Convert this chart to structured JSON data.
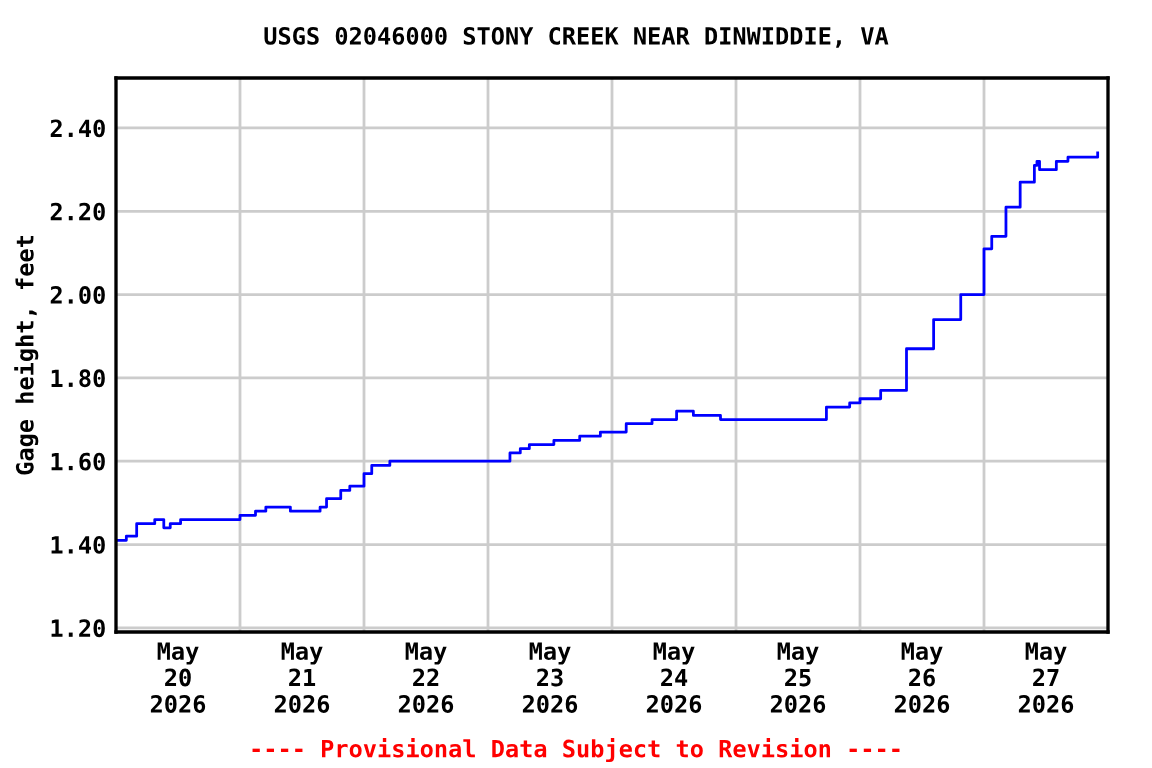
{
  "chart_data": {
    "type": "step",
    "title": "USGS 02046000 STONY CREEK NEAR DINWIDDIE, VA",
    "ylabel": "Gage height, feet",
    "annotations": [
      "---- Provisional Data Subject to Revision ----"
    ],
    "x": [
      "2026-05-20T00:00",
      "2026-05-20T02:00",
      "2026-05-20T04:00",
      "2026-05-20T07:30",
      "2026-05-20T09:15",
      "2026-05-20T10:30",
      "2026-05-20T12:30",
      "2026-05-20T23:15",
      "2026-05-21T00:00",
      "2026-05-21T03:00",
      "2026-05-21T05:00",
      "2026-05-21T09:00",
      "2026-05-21T09:45",
      "2026-05-21T14:45",
      "2026-05-21T15:30",
      "2026-05-21T16:45",
      "2026-05-21T19:30",
      "2026-05-21T21:15",
      "2026-05-22T00:00",
      "2026-05-22T01:30",
      "2026-05-22T05:00",
      "2026-05-23T03:30",
      "2026-05-23T04:15",
      "2026-05-23T06:15",
      "2026-05-23T08:00",
      "2026-05-23T12:45",
      "2026-05-23T17:45",
      "2026-05-23T21:45",
      "2026-05-24T02:45",
      "2026-05-24T07:45",
      "2026-05-24T12:30",
      "2026-05-24T15:30",
      "2026-05-24T15:45",
      "2026-05-24T20:00",
      "2026-05-24T21:00",
      "2026-05-25T17:00",
      "2026-05-25T17:30",
      "2026-05-25T20:00",
      "2026-05-25T22:00",
      "2026-05-26T00:00",
      "2026-05-26T04:00",
      "2026-05-26T09:00",
      "2026-05-26T14:15",
      "2026-05-26T19:30",
      "2026-05-26T22:00",
      "2026-05-27T00:00",
      "2026-05-27T01:30",
      "2026-05-27T04:15",
      "2026-05-27T07:00",
      "2026-05-27T09:45",
      "2026-05-27T10:15",
      "2026-05-27T10:45",
      "2026-05-27T12:45",
      "2026-05-27T14:00",
      "2026-05-27T16:15",
      "2026-05-27T21:45",
      "2026-05-27T22:00"
    ],
    "series": [
      {
        "color": "#0000ff",
        "values": [
          1.41,
          1.42,
          1.45,
          1.46,
          1.44,
          1.45,
          1.46,
          1.46,
          1.47,
          1.48,
          1.49,
          1.49,
          1.48,
          1.48,
          1.49,
          1.51,
          1.53,
          1.54,
          1.57,
          1.59,
          1.6,
          1.6,
          1.62,
          1.63,
          1.64,
          1.65,
          1.66,
          1.67,
          1.69,
          1.7,
          1.72,
          1.72,
          1.71,
          1.71,
          1.7,
          1.7,
          1.73,
          1.73,
          1.74,
          1.75,
          1.77,
          1.87,
          1.94,
          2.0,
          2.0,
          2.11,
          2.14,
          2.21,
          2.27,
          2.31,
          2.32,
          2.3,
          2.3,
          2.32,
          2.33,
          2.33,
          2.34
        ]
      }
    ],
    "xlim": [
      "2026-05-20T00:00",
      "2026-05-28T00:00"
    ],
    "xticks": [
      {
        "value": "2026-05-20T12:00",
        "label": "May\n20\n2026"
      },
      {
        "value": "2026-05-21T00:00",
        "label": null
      },
      {
        "value": "2026-05-21T12:00",
        "label": "May\n21\n2026"
      },
      {
        "value": "2026-05-22T00:00",
        "label": null
      },
      {
        "value": "2026-05-22T12:00",
        "label": "May\n22\n2026"
      },
      {
        "value": "2026-05-23T00:00",
        "label": null
      },
      {
        "value": "2026-05-23T12:00",
        "label": "May\n23\n2026"
      },
      {
        "value": "2026-05-24T00:00",
        "label": null
      },
      {
        "value": "2026-05-24T12:00",
        "label": "May\n24\n2026"
      },
      {
        "value": "2026-05-25T00:00",
        "label": null
      },
      {
        "value": "2026-05-25T12:00",
        "label": "May\n25\n2026"
      },
      {
        "value": "2026-05-26T00:00",
        "label": null
      },
      {
        "value": "2026-05-26T12:00",
        "label": "May\n26\n2026"
      },
      {
        "value": "2026-05-27T00:00",
        "label": null
      },
      {
        "value": "2026-05-27T12:00",
        "label": "May\n27\n2026"
      }
    ],
    "ylim": [
      1.19,
      2.52
    ],
    "yticks": [
      {
        "value": 1.2,
        "label": "1.20"
      },
      {
        "value": 1.4,
        "label": "1.40"
      },
      {
        "value": 1.6,
        "label": "1.60"
      },
      {
        "value": 1.8,
        "label": "1.80"
      },
      {
        "value": 2.0,
        "label": "2.00"
      },
      {
        "value": 2.2,
        "label": "2.20"
      },
      {
        "value": 2.4,
        "label": "2.40"
      }
    ],
    "grid": true,
    "legend": false
  }
}
